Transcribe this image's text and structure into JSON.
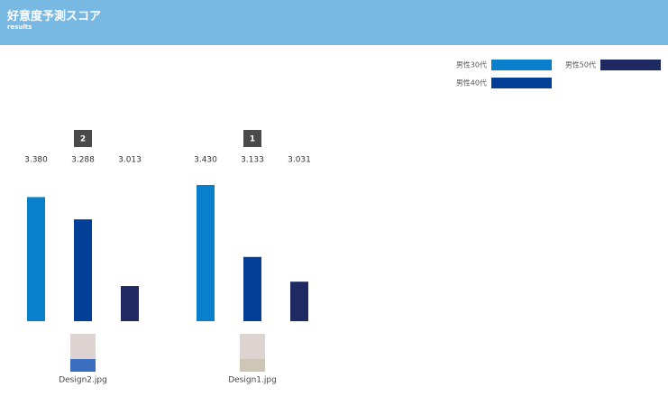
{
  "header": {
    "title": "好意度予測スコア",
    "subtitle": "results"
  },
  "chart_data": {
    "type": "bar",
    "categories": [
      "Design2.jpg",
      "Design1.jpg"
    ],
    "ranks": [
      2,
      1
    ],
    "ylim": [
      2.868,
      3.43
    ],
    "series": [
      {
        "name": "男性30代",
        "color": "#0a7fcc",
        "values": [
          3.38,
          3.43
        ],
        "value_labels": [
          "3.380",
          "3.430"
        ]
      },
      {
        "name": "男性40代",
        "color": "#023f96",
        "values": [
          3.288,
          3.133
        ],
        "value_labels": [
          "3.288",
          "3.133"
        ]
      },
      {
        "name": "男性50代",
        "color": "#1f2a63",
        "values": [
          3.013,
          3.031
        ],
        "value_labels": [
          "3.013",
          "3.031"
        ]
      }
    ]
  }
}
